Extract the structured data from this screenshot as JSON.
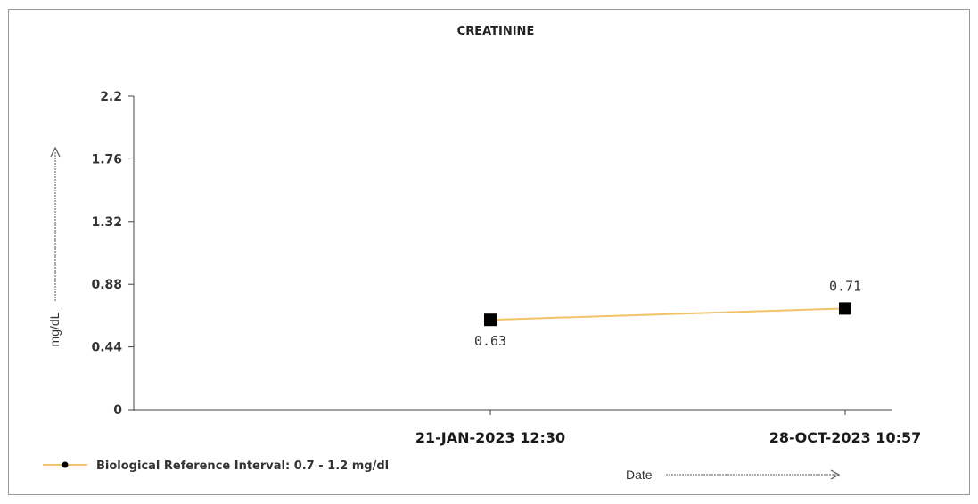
{
  "chart_data": {
    "type": "line",
    "title": "CREATININE",
    "ylabel": "mg/dL",
    "xlabel": "Date",
    "ylim": [
      0,
      2.2
    ],
    "y_ticks": [
      "0",
      "0.44",
      "0.88",
      "1.32",
      "1.76",
      "2.2"
    ],
    "y_tick_values": [
      0,
      0.44,
      0.88,
      1.32,
      1.76,
      2.2
    ],
    "categories": [
      "21-JAN-2023 12:30",
      "28-OCT-2023 10:57"
    ],
    "series": [
      {
        "name": "Biological Reference Interval: 0.7 - 1.2 mg/dl",
        "values": [
          0.63,
          0.71
        ],
        "data_labels": [
          "0.63",
          "0.71"
        ],
        "line_color": "#f3c36a",
        "marker_color": "#000000",
        "marker": "square"
      }
    ],
    "legend_position": "bottom-left",
    "grid": false
  }
}
